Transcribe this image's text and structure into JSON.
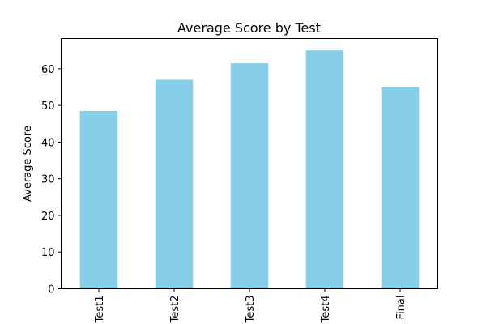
{
  "chart_data": {
    "type": "bar",
    "title": "Average Score by Test",
    "xlabel": "",
    "ylabel": "Average Score",
    "categories": [
      "Test1",
      "Test2",
      "Test3",
      "Test4",
      "Final"
    ],
    "values": [
      48.5,
      57.0,
      61.5,
      65.0,
      55.0
    ],
    "ylim": [
      0,
      68.25
    ],
    "yticks": [
      0,
      10,
      20,
      30,
      40,
      50,
      60
    ],
    "bar_color": "#87CEEB",
    "grid": false,
    "legend": "none"
  }
}
